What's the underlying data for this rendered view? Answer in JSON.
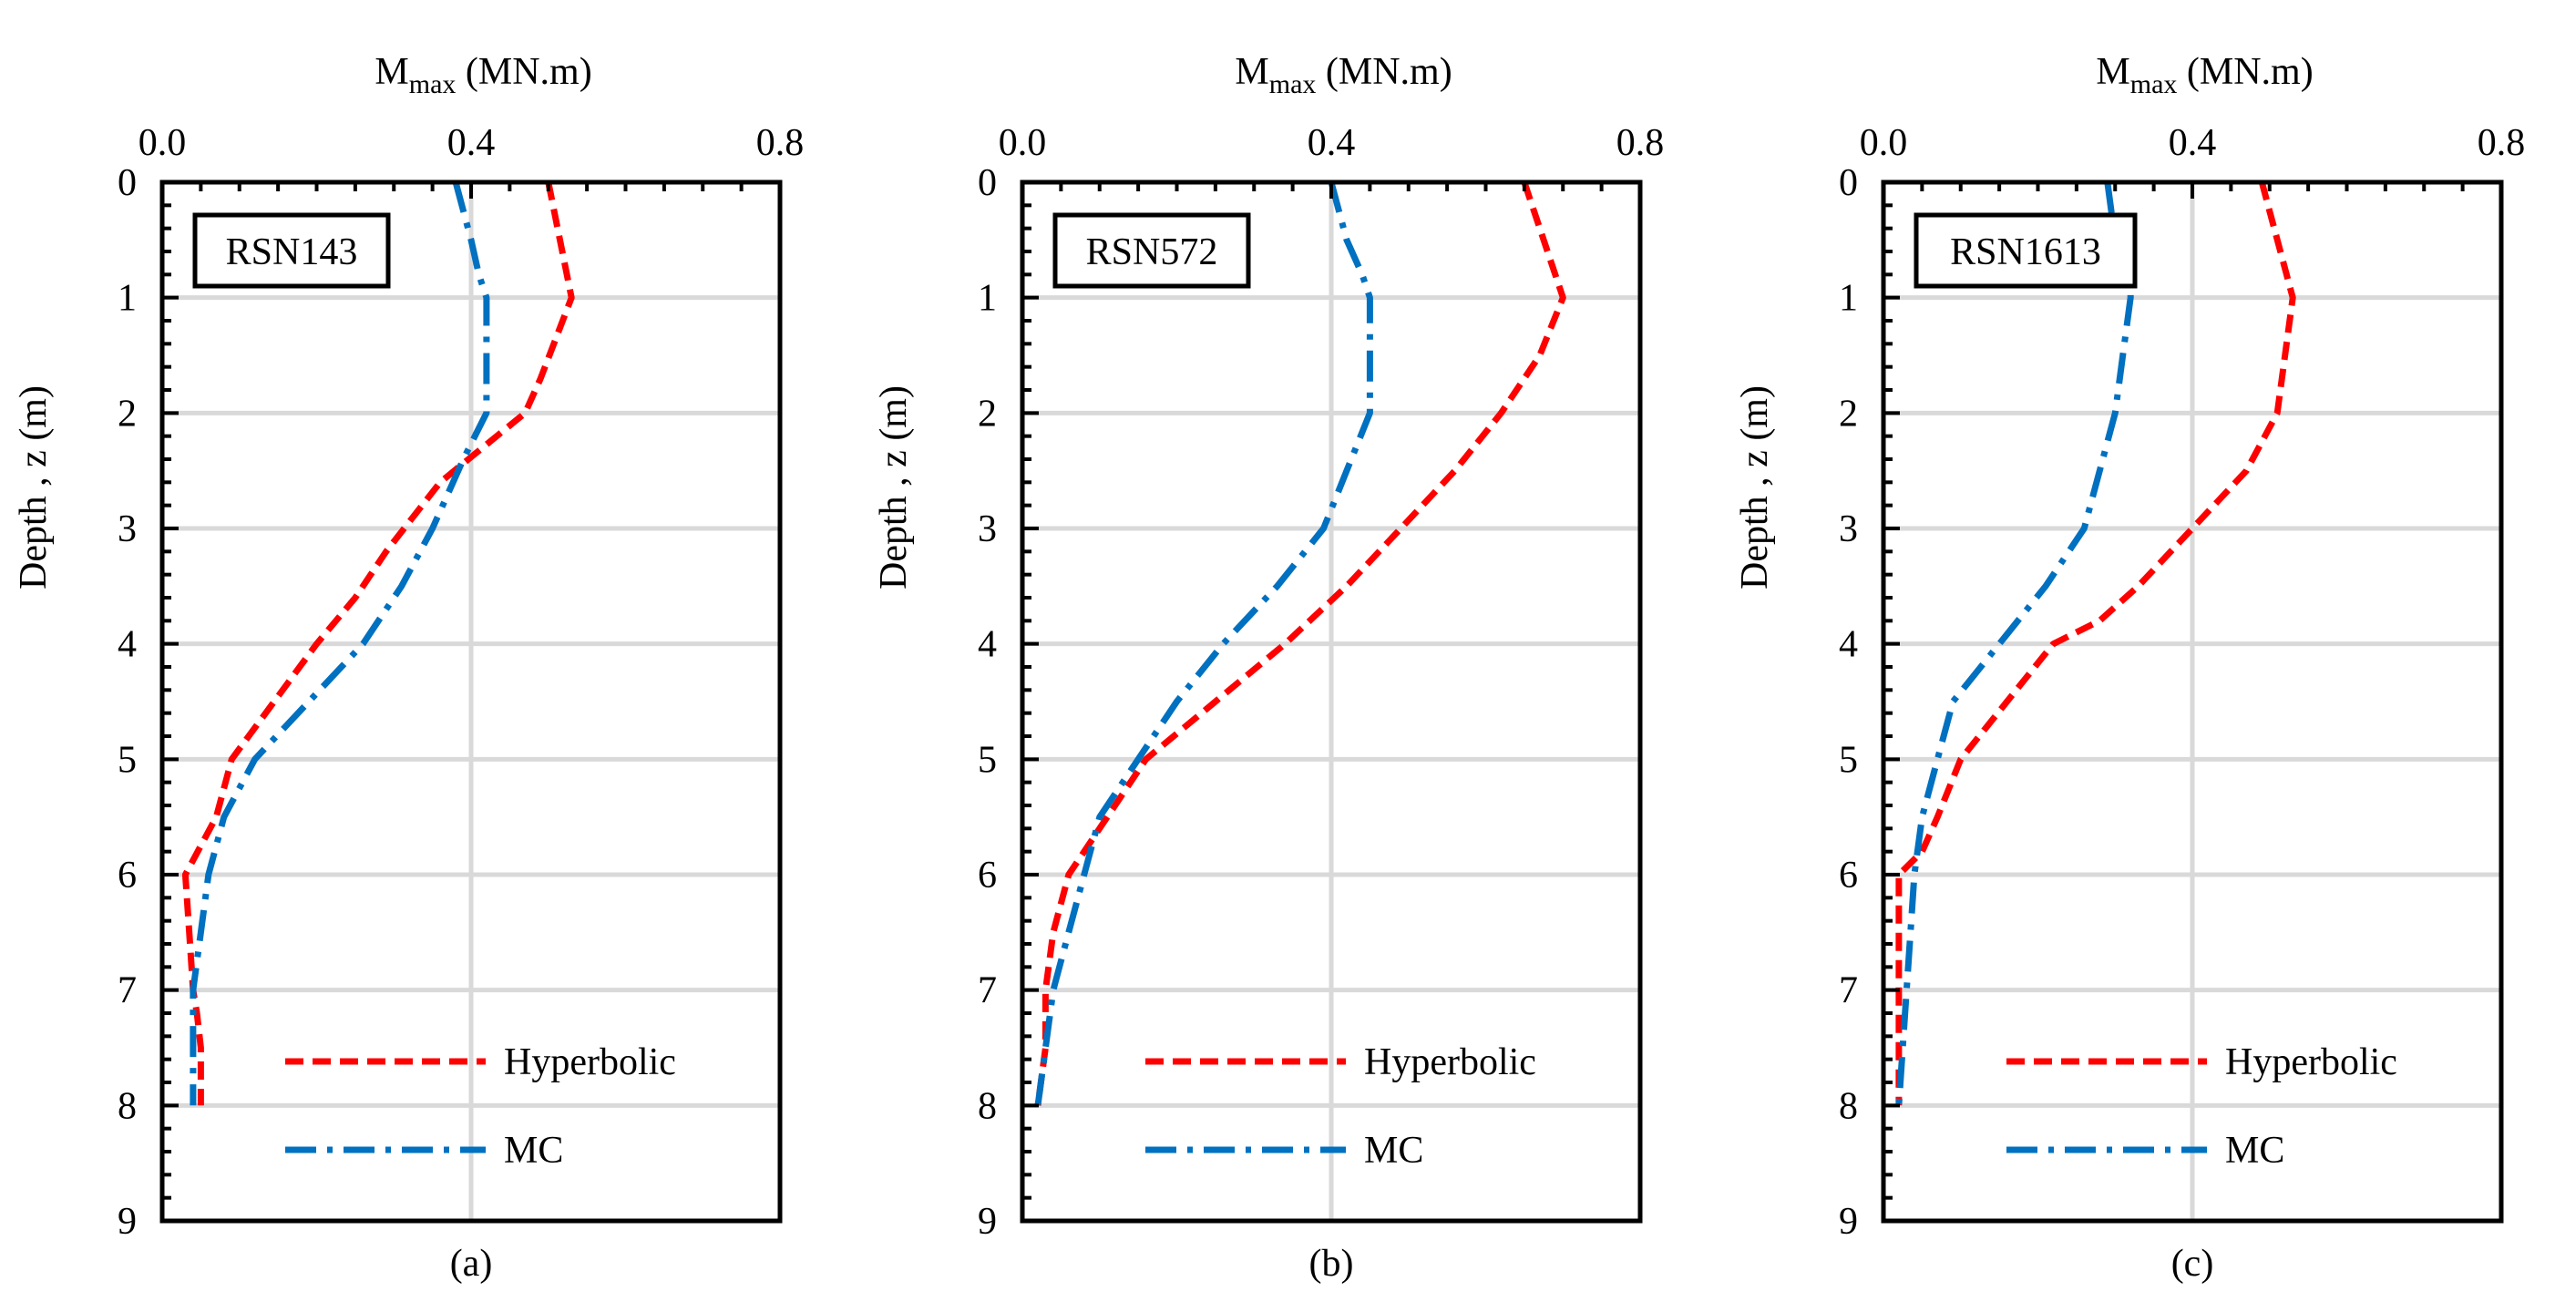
{
  "figure": {
    "hyperbolic_color": "#ff0000",
    "mc_color": "#0070c0",
    "grid_color": "#d9d9d9"
  },
  "chart_data": [
    {
      "type": "line",
      "panel_label": "(a)",
      "record": "RSN143",
      "xlabel_main": "M",
      "xlabel_sub": "max",
      "xlabel_units": " (MN.m)",
      "ylabel": "Depth , z (m)",
      "xlim": [
        0,
        0.8
      ],
      "ylim": [
        0,
        9
      ],
      "x_ticks": [
        "0.0",
        "0.4",
        "0.8"
      ],
      "y_ticks": [
        "0",
        "1",
        "2",
        "3",
        "4",
        "5",
        "6",
        "7",
        "8",
        "9"
      ],
      "x_axis_position": "top",
      "y_axis_inverted": true,
      "legend_position": "bottom-right",
      "series": [
        {
          "name": "Hyperbolic",
          "style": "dashed",
          "x": [
            0.5,
            0.53,
            0.49,
            0.47,
            0.36,
            0.29,
            0.25,
            0.2,
            0.09,
            0.07,
            0.03,
            0.035,
            0.04,
            0.045,
            0.05,
            0.05
          ],
          "depth": [
            0,
            1,
            1.7,
            2,
            2.6,
            3.2,
            3.6,
            4,
            5,
            5.5,
            6,
            6.5,
            7,
            7.2,
            7.5,
            8
          ]
        },
        {
          "name": "MC",
          "style": "dashdot",
          "x": [
            0.38,
            0.4,
            0.41,
            0.42,
            0.42,
            0.39,
            0.35,
            0.31,
            0.26,
            0.19,
            0.12,
            0.08,
            0.06,
            0.05,
            0.04,
            0.04,
            0.04
          ],
          "depth": [
            0,
            0.5,
            0.8,
            1,
            2,
            2.4,
            3,
            3.5,
            4,
            4.5,
            5,
            5.5,
            6,
            6.5,
            7,
            7.5,
            8
          ]
        }
      ]
    },
    {
      "type": "line",
      "panel_label": "(b)",
      "record": "RSN572",
      "xlabel_main": "M",
      "xlabel_sub": "max",
      "xlabel_units": " (MN.m)",
      "ylabel": "Depth , z (m)",
      "xlim": [
        0,
        0.8
      ],
      "ylim": [
        0,
        9
      ],
      "x_ticks": [
        "0.0",
        "0.4",
        "0.8"
      ],
      "y_ticks": [
        "0",
        "1",
        "2",
        "3",
        "4",
        "5",
        "6",
        "7",
        "8",
        "9"
      ],
      "x_axis_position": "top",
      "y_axis_inverted": true,
      "legend_position": "bottom-right",
      "series": [
        {
          "name": "Hyperbolic",
          "style": "dashed",
          "x": [
            0.65,
            0.7,
            0.67,
            0.62,
            0.56,
            0.49,
            0.42,
            0.34,
            0.25,
            0.16,
            0.11,
            0.06,
            0.04,
            0.03,
            0.03,
            0.02
          ],
          "depth": [
            0,
            1,
            1.5,
            2,
            2.5,
            3,
            3.5,
            4,
            4.5,
            5,
            5.5,
            6,
            6.5,
            7,
            7.5,
            8
          ]
        },
        {
          "name": "MC",
          "style": "dashdot",
          "x": [
            0.4,
            0.42,
            0.44,
            0.45,
            0.45,
            0.42,
            0.39,
            0.33,
            0.26,
            0.2,
            0.15,
            0.1,
            0.08,
            0.06,
            0.04,
            0.02
          ],
          "depth": [
            0,
            0.5,
            0.8,
            1,
            2,
            2.5,
            3,
            3.5,
            4,
            4.5,
            5,
            5.5,
            6,
            6.5,
            7,
            8
          ]
        }
      ]
    },
    {
      "type": "line",
      "panel_label": "(c)",
      "record": "RSN1613",
      "xlabel_main": "M",
      "xlabel_sub": "max",
      "xlabel_units": " (MN.m)",
      "ylabel": "Depth , z (m)",
      "xlim": [
        0,
        0.8
      ],
      "ylim": [
        0,
        9
      ],
      "x_ticks": [
        "0.0",
        "0.4",
        "0.8"
      ],
      "y_ticks": [
        "0",
        "1",
        "2",
        "3",
        "4",
        "5",
        "6",
        "7",
        "8",
        "9"
      ],
      "x_axis_position": "top",
      "y_axis_inverted": true,
      "legend_position": "bottom-right",
      "series": [
        {
          "name": "Hyperbolic",
          "style": "dashed",
          "x": [
            0.49,
            0.53,
            0.51,
            0.47,
            0.4,
            0.33,
            0.28,
            0.22,
            0.16,
            0.1,
            0.07,
            0.05,
            0.02,
            0.02,
            0.02,
            0.02
          ],
          "depth": [
            0,
            1,
            2,
            2.5,
            3,
            3.5,
            3.8,
            4,
            4.5,
            5,
            5.5,
            5.8,
            6,
            6.5,
            7,
            8
          ]
        },
        {
          "name": "MC",
          "style": "dashdot",
          "x": [
            0.29,
            0.3,
            0.32,
            0.32,
            0.31,
            0.3,
            0.26,
            0.21,
            0.15,
            0.09,
            0.07,
            0.05,
            0.04,
            0.035,
            0.03,
            0.02
          ],
          "depth": [
            0,
            0.5,
            0.8,
            1,
            1.5,
            2,
            3,
            3.5,
            4,
            4.5,
            5,
            5.5,
            6,
            6.5,
            7,
            8
          ]
        }
      ]
    }
  ]
}
